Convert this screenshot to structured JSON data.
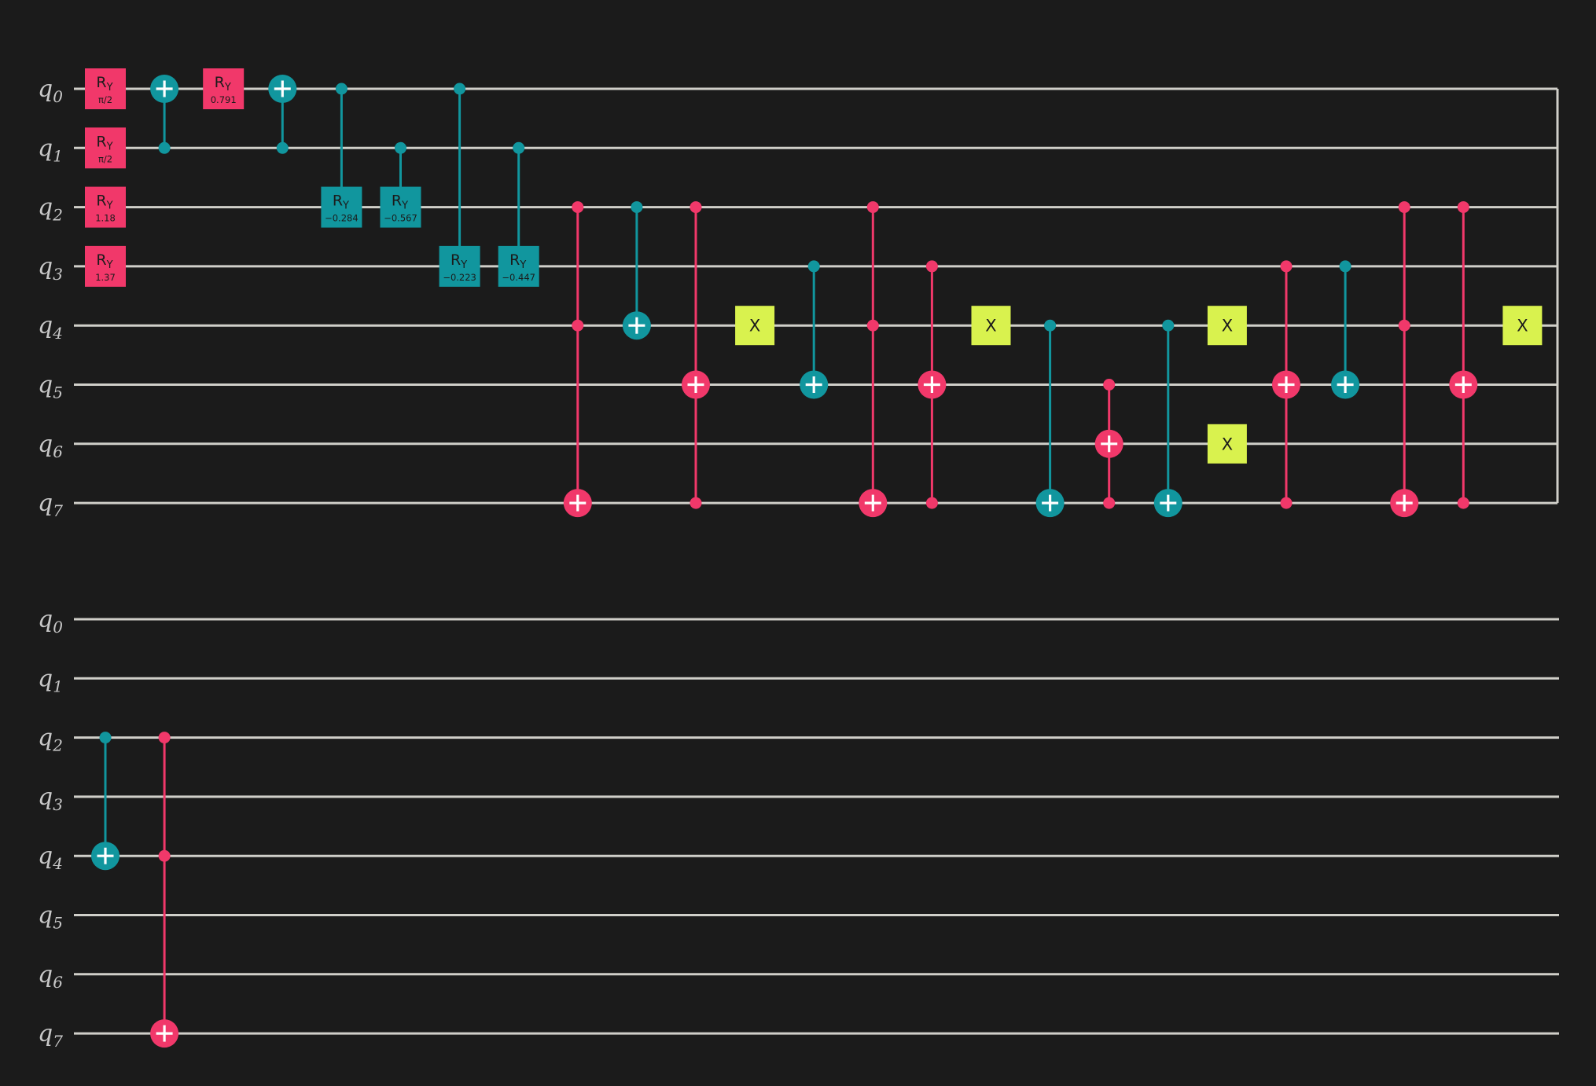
{
  "colors": {
    "background": "#1b1b1b",
    "wire": "#d0cfc9",
    "label": "#c8c8c8",
    "pink": "#f1386a",
    "teal": "#11969e",
    "lime": "#d9f24e",
    "gate_text_dark": "#1b1b1b",
    "gate_text_light": "#ffffff"
  },
  "qubits": [
    "0",
    "1",
    "2",
    "3",
    "4",
    "5",
    "6",
    "7"
  ],
  "qubit_prefix": "q",
  "rows": [
    {
      "name": "row-1",
      "gates": [
        {
          "type": "ry",
          "q": 0,
          "param": "π/2",
          "color": "pink",
          "col": 0
        },
        {
          "type": "ry",
          "q": 1,
          "param": "π/2",
          "color": "pink",
          "col": 0
        },
        {
          "type": "ry",
          "q": 2,
          "param": "1.18",
          "color": "pink",
          "col": 0
        },
        {
          "type": "ry",
          "q": 3,
          "param": "1.37",
          "color": "pink",
          "col": 0
        },
        {
          "type": "cx",
          "controls": [
            1
          ],
          "target": 0,
          "color": "teal",
          "col": 1
        },
        {
          "type": "ry",
          "q": 0,
          "param": "0.791",
          "color": "pink",
          "col": 2
        },
        {
          "type": "cx",
          "controls": [
            1
          ],
          "target": 0,
          "color": "teal",
          "col": 3
        },
        {
          "type": "cry",
          "control": 0,
          "target": 2,
          "param": "−0.284",
          "color": "teal",
          "col": 4
        },
        {
          "type": "cry",
          "control": 1,
          "target": 2,
          "param": "−0.567",
          "color": "teal",
          "col": 5
        },
        {
          "type": "cry",
          "control": 0,
          "target": 3,
          "param": "−0.223",
          "color": "teal",
          "col": 6
        },
        {
          "type": "cry",
          "control": 1,
          "target": 3,
          "param": "−0.447",
          "color": "teal",
          "col": 7
        },
        {
          "type": "cx",
          "controls": [
            2,
            4
          ],
          "target": 7,
          "color": "pink",
          "col": 8
        },
        {
          "type": "cx",
          "controls": [
            2
          ],
          "target": 4,
          "color": "teal",
          "col": 9
        },
        {
          "type": "cx",
          "controls": [
            2,
            7
          ],
          "target": 5,
          "color": "pink",
          "col": 10
        },
        {
          "type": "x",
          "q": 4,
          "color": "lime",
          "col": 11
        },
        {
          "type": "cx",
          "controls": [
            3
          ],
          "target": 5,
          "color": "teal",
          "col": 12
        },
        {
          "type": "cx",
          "controls": [
            2,
            4
          ],
          "target": 7,
          "color": "pink",
          "col": 13
        },
        {
          "type": "cx",
          "controls": [
            3,
            7
          ],
          "target": 5,
          "color": "pink",
          "col": 14
        },
        {
          "type": "x",
          "q": 4,
          "color": "lime",
          "col": 15
        },
        {
          "type": "cx",
          "controls": [
            4
          ],
          "target": 7,
          "color": "teal",
          "col": 16
        },
        {
          "type": "cx",
          "controls": [
            5,
            7
          ],
          "target": 6,
          "color": "pink",
          "col": 17
        },
        {
          "type": "cx",
          "controls": [
            4
          ],
          "target": 7,
          "color": "teal",
          "col": 18
        },
        {
          "type": "x",
          "q": 4,
          "color": "lime",
          "col": 19
        },
        {
          "type": "x",
          "q": 6,
          "color": "lime",
          "col": 19
        },
        {
          "type": "cx",
          "controls": [
            3,
            7
          ],
          "target": 5,
          "color": "pink",
          "col": 20
        },
        {
          "type": "cx",
          "controls": [
            3
          ],
          "target": 5,
          "color": "teal",
          "col": 21
        },
        {
          "type": "cx",
          "controls": [
            2,
            4
          ],
          "target": 7,
          "color": "pink",
          "col": 22
        },
        {
          "type": "cx",
          "controls": [
            2,
            7
          ],
          "target": 5,
          "color": "pink",
          "col": 23
        },
        {
          "type": "x",
          "q": 4,
          "color": "lime",
          "col": 24
        }
      ]
    },
    {
      "name": "row-2",
      "gates": [
        {
          "type": "cx",
          "controls": [
            2
          ],
          "target": 4,
          "color": "teal",
          "col": 0
        },
        {
          "type": "cx",
          "controls": [
            2,
            4
          ],
          "target": 7,
          "color": "pink",
          "col": 1
        }
      ]
    }
  ],
  "gate_labels": {
    "ry_main": "R",
    "ry_sub": "Y",
    "x": "X"
  }
}
